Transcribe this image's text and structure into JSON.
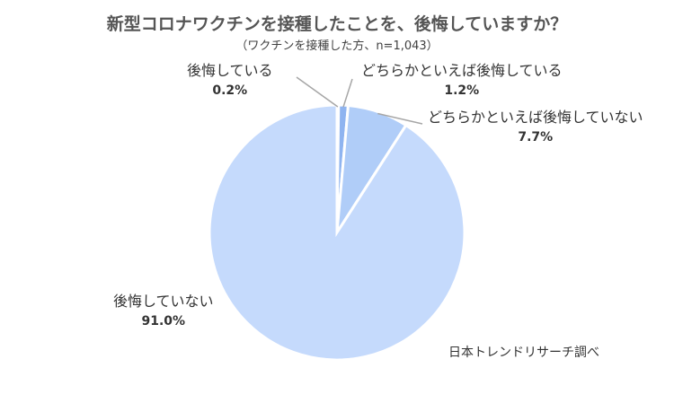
{
  "chart_data": {
    "type": "pie",
    "title": "新型コロナワクチンを接種したことを、後悔していますか？",
    "subtitle": "（ワクチンを接種した方、n=1,043）",
    "slices": [
      {
        "label": "後悔している",
        "value": 0.2,
        "display": "0.2%",
        "color": "#8fb4f0"
      },
      {
        "label": "どちらかといえば後悔している",
        "value": 1.2,
        "display": "1.2%",
        "color": "#8fb4f0"
      },
      {
        "label": "どちらかといえば後悔していない",
        "value": 7.7,
        "display": "7.7%",
        "color": "#b0cdf8"
      },
      {
        "label": "後悔していない",
        "value": 91.0,
        "display": "91.0%",
        "color": "#c5dafc"
      }
    ],
    "start_angle_deg": 0,
    "direction": "clockwise"
  },
  "source": "日本トレンドリサーチ調べ"
}
